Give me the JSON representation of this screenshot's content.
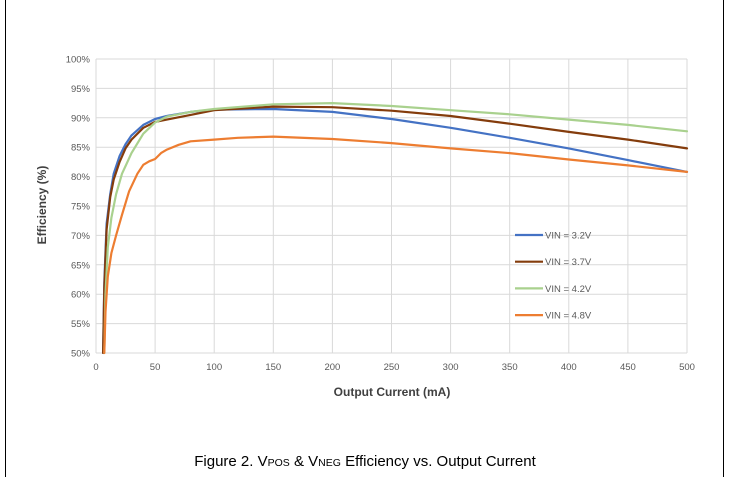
{
  "chart_data": {
    "type": "line",
    "title": "",
    "xlabel": "Output Current (mA)",
    "ylabel": "Efficiency (%)",
    "xlim": [
      0,
      500
    ],
    "ylim": [
      50,
      100
    ],
    "x_ticks": [
      "0",
      "50",
      "100",
      "150",
      "200",
      "250",
      "300",
      "350",
      "400",
      "450",
      "500"
    ],
    "y_ticks": [
      "50%",
      "55%",
      "60%",
      "65%",
      "70%",
      "75%",
      "80%",
      "85%",
      "90%",
      "95%",
      "100%"
    ],
    "grid": true,
    "legend_position": "center-right",
    "series": [
      {
        "name": "VIN = 3.2V",
        "color": "#4472c4",
        "points": [
          [
            6,
            50
          ],
          [
            7,
            62
          ],
          [
            9,
            72
          ],
          [
            12,
            77
          ],
          [
            15,
            80.5
          ],
          [
            20,
            83.5
          ],
          [
            25,
            85.5
          ],
          [
            30,
            87
          ],
          [
            40,
            88.8
          ],
          [
            50,
            89.8
          ],
          [
            60,
            90.3
          ],
          [
            80,
            91
          ],
          [
            100,
            91.4
          ],
          [
            150,
            91.5
          ],
          [
            200,
            91
          ],
          [
            250,
            89.8
          ],
          [
            300,
            88.3
          ],
          [
            350,
            86.6
          ],
          [
            400,
            84.8
          ],
          [
            450,
            82.8
          ],
          [
            500,
            80.8
          ]
        ]
      },
      {
        "name": "VIN = 3.7V",
        "color": "#843c0c",
        "points": [
          [
            6,
            50
          ],
          [
            7,
            61
          ],
          [
            9,
            71
          ],
          [
            12,
            76.5
          ],
          [
            15,
            79.5
          ],
          [
            20,
            82.5
          ],
          [
            25,
            84.8
          ],
          [
            30,
            86.3
          ],
          [
            40,
            88.3
          ],
          [
            50,
            89.3
          ],
          [
            60,
            89.7
          ],
          [
            80,
            90.5
          ],
          [
            100,
            91.3
          ],
          [
            150,
            91.9
          ],
          [
            200,
            91.8
          ],
          [
            250,
            91.2
          ],
          [
            300,
            90.3
          ],
          [
            350,
            89
          ],
          [
            400,
            87.6
          ],
          [
            450,
            86.3
          ],
          [
            500,
            84.8
          ]
        ]
      },
      {
        "name": "VIN = 4.2V",
        "color": "#a9d18e",
        "points": [
          [
            7,
            50
          ],
          [
            8,
            60
          ],
          [
            10,
            68
          ],
          [
            13,
            73
          ],
          [
            17,
            77
          ],
          [
            22,
            80.5
          ],
          [
            30,
            84
          ],
          [
            40,
            87.3
          ],
          [
            50,
            89.2
          ],
          [
            60,
            90.2
          ],
          [
            80,
            91
          ],
          [
            100,
            91.5
          ],
          [
            150,
            92.3
          ],
          [
            200,
            92.5
          ],
          [
            250,
            92
          ],
          [
            300,
            91.3
          ],
          [
            350,
            90.6
          ],
          [
            400,
            89.7
          ],
          [
            450,
            88.8
          ],
          [
            500,
            87.7
          ]
        ]
      },
      {
        "name": "VIN = 4.8V",
        "color": "#ed7d31",
        "points": [
          [
            7,
            50
          ],
          [
            8,
            57
          ],
          [
            10,
            63
          ],
          [
            13,
            67
          ],
          [
            17,
            70
          ],
          [
            22,
            73.5
          ],
          [
            28,
            77.5
          ],
          [
            35,
            80.5
          ],
          [
            40,
            82
          ],
          [
            45,
            82.6
          ],
          [
            50,
            83
          ],
          [
            55,
            84
          ],
          [
            60,
            84.6
          ],
          [
            70,
            85.4
          ],
          [
            80,
            86
          ],
          [
            100,
            86.3
          ],
          [
            120,
            86.6
          ],
          [
            150,
            86.8
          ],
          [
            200,
            86.4
          ],
          [
            250,
            85.7
          ],
          [
            300,
            84.8
          ],
          [
            350,
            84
          ],
          [
            400,
            82.9
          ],
          [
            450,
            81.9
          ],
          [
            500,
            80.8
          ]
        ]
      }
    ]
  },
  "caption": {
    "prefix": "Figure 2. V",
    "sub1": "POS",
    "middle": " & V",
    "sub2": "NEG",
    "suffix": " Efficiency vs. Output Current"
  }
}
